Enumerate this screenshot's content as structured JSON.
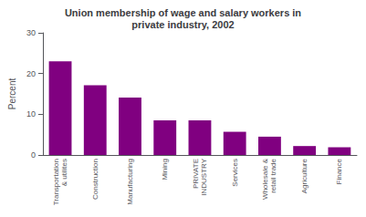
{
  "chart_data": {
    "type": "bar",
    "title": "Union membership of wage and salary workers in\nprivate industry, 2002",
    "categories": [
      "Transportation\n& utilites",
      "Construction",
      "Manufacturing",
      "Mining",
      "PRIVATE\nINDUSTRY",
      "Services",
      "Wholesale &\nretail trade",
      "Agriculture",
      "Finance"
    ],
    "values": [
      23.0,
      17.1,
      14.1,
      8.5,
      8.5,
      5.7,
      4.5,
      2.2,
      1.9
    ],
    "color": "#800080",
    "ylabel": "Percent",
    "ylim": [
      0,
      30
    ],
    "yticks": [
      0,
      10,
      20,
      30
    ],
    "grid": false
  }
}
